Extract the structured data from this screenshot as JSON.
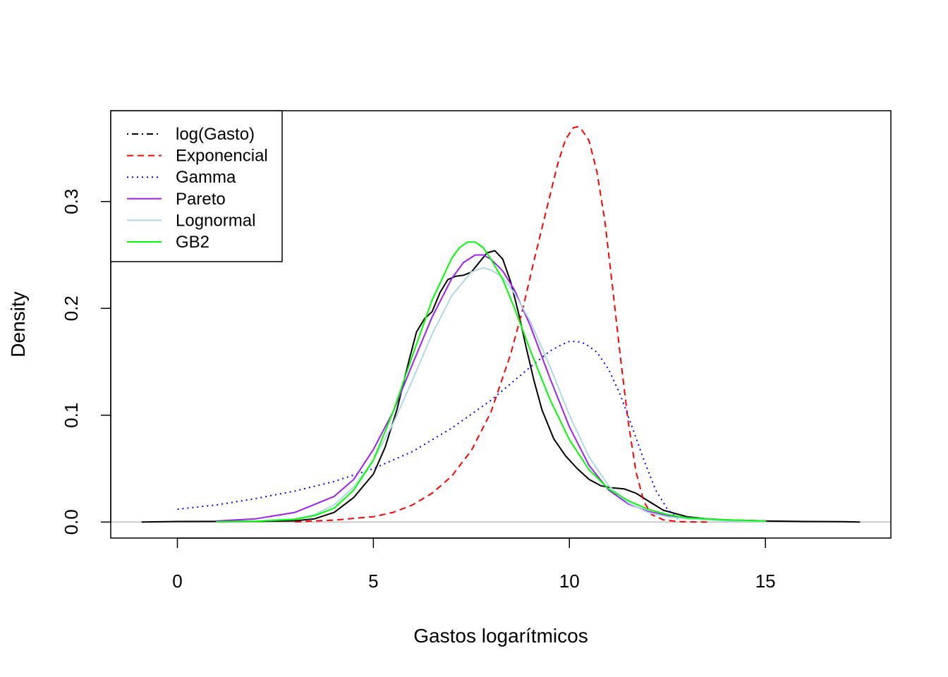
{
  "chart_data": {
    "type": "line",
    "title": "",
    "xlabel": "Gastos logarítmicos",
    "ylabel": "Density",
    "xlim": [
      -1.7,
      18.2
    ],
    "ylim": [
      -0.015,
      0.385
    ],
    "x_ticks": [
      0,
      5,
      10,
      15
    ],
    "x_tick_labels": [
      "0",
      "5",
      "10",
      "15"
    ],
    "y_ticks": [
      0.0,
      0.1,
      0.2,
      0.3
    ],
    "y_tick_labels": [
      "0.0",
      "0.1",
      "0.2",
      "0.3"
    ],
    "baseline": 0,
    "legend_position": "top-left",
    "series": [
      {
        "name": "log(Gasto)",
        "color": "#000000",
        "style": "solid",
        "legend_style": "dashdot",
        "x": [
          -0.9,
          0,
          1,
          2,
          3,
          3.5,
          4,
          4.5,
          5,
          5.3,
          5.6,
          5.9,
          6.1,
          6.3,
          6.5,
          6.7,
          6.9,
          7.1,
          7.3,
          7.5,
          7.7,
          7.9,
          8.1,
          8.3,
          8.5,
          8.7,
          8.9,
          9.1,
          9.3,
          9.6,
          9.9,
          10.2,
          10.5,
          10.8,
          11.1,
          11.4,
          11.7,
          12.0,
          12.4,
          13.0,
          13.5,
          14,
          15,
          16,
          17,
          17.4
        ],
        "y": [
          0.0,
          0.0005,
          0.0006,
          0.0007,
          0.0012,
          0.003,
          0.009,
          0.023,
          0.045,
          0.07,
          0.105,
          0.15,
          0.178,
          0.19,
          0.197,
          0.215,
          0.227,
          0.23,
          0.231,
          0.234,
          0.243,
          0.252,
          0.254,
          0.246,
          0.225,
          0.196,
          0.163,
          0.132,
          0.105,
          0.078,
          0.062,
          0.05,
          0.04,
          0.034,
          0.032,
          0.031,
          0.027,
          0.02,
          0.011,
          0.005,
          0.003,
          0.002,
          0.001,
          0.0005,
          0.0004,
          0.0
        ]
      },
      {
        "name": "Exponencial",
        "color": "#ff0000",
        "style": "dashed",
        "legend_style": "dashed",
        "x": [
          3,
          4,
          5,
          5.5,
          6,
          6.5,
          7,
          7.5,
          8,
          8.5,
          8.8,
          9.1,
          9.4,
          9.7,
          9.9,
          10.1,
          10.2,
          10.3,
          10.5,
          10.7,
          10.9,
          11.1,
          11.3,
          11.5,
          11.7,
          11.9,
          12.1,
          12.4,
          12.8,
          13.2,
          13.6
        ],
        "y": [
          0.0002,
          0.0018,
          0.005,
          0.009,
          0.016,
          0.027,
          0.043,
          0.067,
          0.103,
          0.157,
          0.198,
          0.245,
          0.29,
          0.335,
          0.358,
          0.369,
          0.37,
          0.368,
          0.357,
          0.328,
          0.283,
          0.22,
          0.155,
          0.094,
          0.047,
          0.019,
          0.007,
          0.002,
          0.0004,
          0.0001,
          0.0
        ]
      },
      {
        "name": "Gamma",
        "color": "#0000ff",
        "style": "dotted",
        "legend_style": "dotted",
        "x": [
          0,
          1,
          2,
          3,
          4,
          5,
          6,
          7,
          8,
          9,
          9.5,
          9.8,
          10.0,
          10.2,
          10.4,
          10.7,
          11.0,
          11.3,
          11.6,
          11.9,
          12.2,
          12.5,
          12.8
        ],
        "y": [
          0.012,
          0.016,
          0.022,
          0.029,
          0.038,
          0.05,
          0.066,
          0.088,
          0.114,
          0.145,
          0.16,
          0.166,
          0.169,
          0.169,
          0.167,
          0.159,
          0.143,
          0.119,
          0.089,
          0.058,
          0.03,
          0.012,
          0.002
        ]
      },
      {
        "name": "Pareto",
        "color": "#a020f0",
        "style": "solid",
        "legend_style": "solid",
        "x": [
          1,
          2,
          3,
          4,
          4.5,
          5,
          5.5,
          6,
          6.5,
          7,
          7.3,
          7.6,
          7.8,
          8.0,
          8.3,
          8.6,
          9,
          9.5,
          10,
          10.5,
          11,
          11.5,
          12,
          12.5,
          13,
          14,
          15
        ],
        "y": [
          0.001,
          0.003,
          0.009,
          0.024,
          0.04,
          0.068,
          0.103,
          0.148,
          0.192,
          0.228,
          0.243,
          0.25,
          0.25,
          0.246,
          0.235,
          0.217,
          0.184,
          0.135,
          0.089,
          0.053,
          0.03,
          0.017,
          0.01,
          0.006,
          0.004,
          0.002,
          0.001
        ]
      },
      {
        "name": "Lognormal",
        "color": "#add8e6",
        "style": "solid",
        "legend_style": "solid",
        "x": [
          1,
          2,
          3,
          3.5,
          4,
          4.5,
          5,
          5.5,
          6,
          6.5,
          7,
          7.5,
          7.8,
          8.0,
          8.3,
          8.6,
          9,
          9.5,
          10,
          10.5,
          11,
          11.5,
          12,
          12.5,
          13,
          14,
          15
        ],
        "y": [
          0.0002,
          0.0008,
          0.003,
          0.007,
          0.016,
          0.033,
          0.058,
          0.092,
          0.133,
          0.176,
          0.212,
          0.234,
          0.238,
          0.236,
          0.229,
          0.214,
          0.188,
          0.146,
          0.1,
          0.061,
          0.034,
          0.018,
          0.009,
          0.005,
          0.003,
          0.0012,
          0.0005
        ]
      },
      {
        "name": "GB2",
        "color": "#00ff00",
        "style": "solid",
        "legend_style": "solid",
        "x": [
          1,
          2,
          3,
          3.5,
          4,
          4.5,
          5,
          5.5,
          6,
          6.5,
          7,
          7.2,
          7.4,
          7.6,
          7.8,
          8.0,
          8.3,
          8.6,
          9,
          9.5,
          10,
          10.5,
          11,
          11.5,
          12,
          12.5,
          13,
          14,
          15
        ],
        "y": [
          0.0002,
          0.0007,
          0.0025,
          0.006,
          0.013,
          0.03,
          0.058,
          0.103,
          0.156,
          0.208,
          0.247,
          0.257,
          0.262,
          0.262,
          0.257,
          0.246,
          0.227,
          0.2,
          0.161,
          0.115,
          0.077,
          0.049,
          0.031,
          0.02,
          0.012,
          0.007,
          0.004,
          0.002,
          0.001
        ]
      }
    ]
  }
}
